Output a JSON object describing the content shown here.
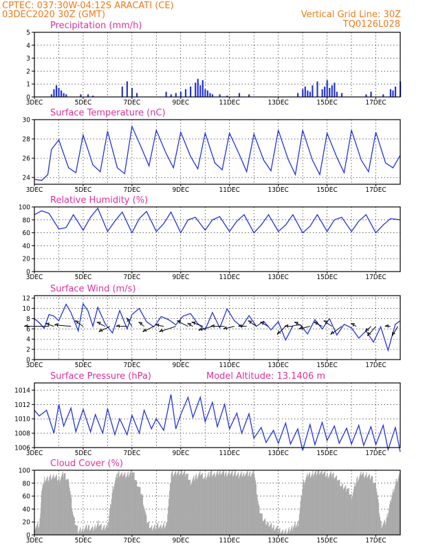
{
  "header": {
    "line1_left": "CPTEC:   037:30W-04:12S   ARACATI (CE)",
    "line2_left": "03DEC2020 30Z (GMT)",
    "line1_right": "Vertical Grid Line: 30Z",
    "line2_right": "TQ0126L028"
  },
  "colors": {
    "header": "#f07a1a",
    "title": "#e0309a",
    "series": "#2233dd",
    "cloud": "#a9a9a9"
  },
  "x_axis": {
    "start": "3DEC",
    "end": "18DEC",
    "tick_labels": [
      "3DEC",
      "5DEC",
      "7DEC",
      "9DEC",
      "11DEC",
      "13DEC",
      "15DEC",
      "17DEC"
    ]
  },
  "chart_data": [
    {
      "id": "precip",
      "type": "bar",
      "title": "Precipitation (mm/h)",
      "ylim": [
        0,
        5
      ],
      "yticks": [
        0,
        1,
        2,
        3,
        4,
        5
      ],
      "x": [
        3.7,
        3.8,
        3.9,
        4.0,
        4.1,
        4.2,
        4.3,
        4.9,
        5.2,
        5.4,
        6.6,
        6.8,
        7.0,
        7.2,
        8.4,
        8.6,
        8.8,
        9.0,
        9.2,
        9.4,
        9.6,
        9.7,
        9.8,
        9.9,
        10.0,
        10.1,
        10.2,
        10.3,
        10.6,
        10.9,
        11.4,
        11.8,
        13.8,
        14.0,
        14.1,
        14.2,
        14.3,
        14.4,
        14.6,
        14.8,
        14.9,
        15.0,
        15.1,
        15.2,
        15.3,
        15.4,
        15.6,
        16.6,
        16.8,
        17.3,
        17.6,
        17.7,
        17.8,
        18.0
      ],
      "values": [
        0.2,
        0.6,
        0.9,
        0.7,
        0.5,
        0.3,
        0.2,
        0.2,
        0.2,
        0.1,
        0.8,
        1.2,
        0.7,
        0.3,
        0.4,
        0.2,
        0.3,
        0.4,
        0.6,
        0.8,
        1.1,
        1.4,
        0.9,
        1.3,
        0.6,
        0.5,
        0.3,
        0.2,
        0.2,
        0.1,
        0.3,
        0.2,
        0.3,
        0.6,
        0.8,
        0.5,
        0.4,
        0.9,
        1.2,
        0.6,
        0.8,
        1.3,
        0.7,
        0.9,
        1.1,
        0.4,
        0.3,
        0.2,
        0.4,
        0.2,
        0.6,
        0.5,
        0.8,
        1.2
      ]
    },
    {
      "id": "temp",
      "type": "line",
      "title": "Surface Temperature (nC)",
      "ylim": [
        23.3,
        30
      ],
      "yticks": [
        24,
        26,
        28,
        30
      ],
      "days": [
        3.0,
        3.3,
        3.55,
        3.7,
        4.0,
        4.4,
        4.7,
        5.0,
        5.4,
        5.7,
        6.0,
        6.4,
        6.7,
        7.0,
        7.4,
        7.7,
        8.0,
        8.4,
        8.7,
        9.0,
        9.4,
        9.7,
        10.0,
        10.4,
        10.7,
        11.0,
        11.4,
        11.7,
        12.0,
        12.4,
        12.7,
        13.0,
        13.4,
        13.7,
        14.0,
        14.4,
        14.7,
        15.0,
        15.4,
        15.7,
        16.0,
        16.4,
        16.7,
        17.0,
        17.4,
        17.7,
        18.0
      ],
      "values": [
        23.8,
        23.7,
        24.3,
        26.9,
        27.9,
        25.0,
        24.5,
        28.4,
        25.3,
        24.6,
        28.8,
        25.0,
        24.4,
        29.3,
        27.0,
        25.2,
        28.9,
        26.5,
        25.0,
        28.7,
        26.2,
        24.9,
        28.6,
        25.5,
        24.8,
        28.6,
        26.4,
        24.6,
        28.5,
        25.8,
        24.7,
        28.9,
        25.9,
        24.3,
        28.9,
        25.8,
        24.3,
        28.6,
        26.1,
        24.5,
        28.9,
        25.8,
        24.6,
        28.7,
        25.5,
        25.0,
        26.3
      ]
    },
    {
      "id": "rh",
      "type": "line",
      "title": "Relative Humidity (%)",
      "ylim": [
        0,
        100
      ],
      "yticks": [
        0,
        20,
        40,
        60,
        80,
        100
      ],
      "days": [
        3.0,
        3.3,
        3.6,
        4.0,
        4.3,
        4.6,
        5.0,
        5.3,
        5.6,
        6.0,
        6.3,
        6.6,
        7.0,
        7.3,
        7.6,
        8.0,
        8.3,
        8.6,
        9.0,
        9.3,
        9.6,
        10.0,
        10.3,
        10.6,
        11.0,
        11.3,
        11.6,
        12.0,
        12.3,
        12.6,
        13.0,
        13.3,
        13.6,
        14.0,
        14.3,
        14.6,
        15.0,
        15.3,
        15.6,
        16.0,
        16.3,
        16.6,
        17.0,
        17.3,
        17.6,
        18.0
      ],
      "values": [
        88,
        94,
        90,
        66,
        68,
        88,
        64,
        84,
        98,
        62,
        78,
        92,
        60,
        82,
        93,
        62,
        74,
        92,
        60,
        80,
        84,
        64,
        80,
        85,
        62,
        78,
        88,
        60,
        72,
        88,
        62,
        72,
        88,
        60,
        70,
        88,
        62,
        80,
        84,
        62,
        78,
        88,
        60,
        72,
        82,
        80
      ]
    },
    {
      "id": "wind",
      "type": "line",
      "title": "Surface Wind (m/s)",
      "ylim": [
        0,
        12.5
      ],
      "yticks": [
        0,
        2,
        4,
        6,
        8,
        10,
        12
      ],
      "days": [
        3.0,
        3.2,
        3.4,
        3.6,
        3.8,
        4.0,
        4.3,
        4.5,
        4.8,
        5.0,
        5.2,
        5.4,
        5.6,
        5.9,
        6.2,
        6.5,
        6.8,
        7.0,
        7.3,
        7.6,
        7.9,
        8.2,
        8.5,
        8.8,
        9.1,
        9.4,
        9.7,
        10.0,
        10.3,
        10.6,
        10.9,
        11.2,
        11.5,
        11.8,
        12.1,
        12.4,
        12.7,
        13.0,
        13.3,
        13.6,
        13.9,
        14.2,
        14.5,
        14.8,
        15.1,
        15.4,
        15.7,
        16.0,
        16.3,
        16.6,
        16.9,
        17.2,
        17.5,
        17.8,
        18.0
      ],
      "values": [
        8.0,
        7.2,
        6.1,
        8.8,
        8.5,
        7.6,
        10.8,
        9.2,
        5.6,
        10.9,
        9.5,
        6.5,
        10.2,
        7.0,
        5.2,
        9.6,
        6.0,
        8.8,
        10.0,
        7.4,
        6.4,
        8.4,
        7.8,
        6.8,
        8.5,
        9.0,
        7.0,
        5.8,
        9.2,
        6.2,
        9.9,
        7.6,
        6.4,
        8.6,
        6.5,
        7.5,
        5.8,
        7.4,
        3.8,
        6.6,
        6.8,
        5.0,
        7.8,
        6.0,
        8.0,
        4.8,
        6.9,
        6.2,
        4.2,
        5.6,
        3.4,
        6.4,
        1.8,
        6.9,
        7.6
      ],
      "vectors": [
        {
          "day": 3.6,
          "u": -9,
          "v": 0
        },
        {
          "day": 3.8,
          "u": -3,
          "v": 1
        },
        {
          "day": 4.5,
          "u": -6,
          "v": 0.5
        },
        {
          "day": 5.0,
          "u": -3,
          "v": 2
        },
        {
          "day": 5.9,
          "u": -3,
          "v": 1.5
        },
        {
          "day": 6.1,
          "u": -4,
          "v": -2
        },
        {
          "day": 6.8,
          "u": -4,
          "v": 0
        },
        {
          "day": 7.0,
          "u": -2,
          "v": 3
        },
        {
          "day": 7.5,
          "u": -2,
          "v": 1.5
        },
        {
          "day": 7.9,
          "u": -4,
          "v": -2
        },
        {
          "day": 8.3,
          "u": -3,
          "v": 0.5
        },
        {
          "day": 8.8,
          "u": -6,
          "v": -2
        },
        {
          "day": 9.3,
          "u": -4,
          "v": 2
        },
        {
          "day": 9.5,
          "u": -2,
          "v": 1
        },
        {
          "day": 9.9,
          "u": -4,
          "v": 1.5
        },
        {
          "day": 10.3,
          "u": -5,
          "v": -1.5
        },
        {
          "day": 10.8,
          "u": -5,
          "v": 0
        },
        {
          "day": 11.2,
          "u": -4,
          "v": -1
        },
        {
          "day": 11.7,
          "u": -3,
          "v": 0
        },
        {
          "day": 12.1,
          "u": -3,
          "v": 2
        },
        {
          "day": 12.6,
          "u": -3,
          "v": 1.5
        },
        {
          "day": 13.3,
          "u": -3,
          "v": -3
        },
        {
          "day": 13.6,
          "u": -3,
          "v": 0
        },
        {
          "day": 14.0,
          "u": -3,
          "v": 1.5
        },
        {
          "day": 14.3,
          "u": -4,
          "v": -1
        },
        {
          "day": 14.8,
          "u": -3,
          "v": 1.5
        },
        {
          "day": 15.2,
          "u": -3,
          "v": 2
        },
        {
          "day": 15.6,
          "u": -4,
          "v": -3
        },
        {
          "day": 16.2,
          "u": -2,
          "v": 1
        },
        {
          "day": 16.8,
          "u": -2,
          "v": -2
        },
        {
          "day": 17.0,
          "u": -3,
          "v": -3.5
        },
        {
          "day": 17.6,
          "u": -2,
          "v": 0
        },
        {
          "day": 17.9,
          "u": -2,
          "v": -3.5
        }
      ]
    },
    {
      "id": "pressure",
      "type": "line",
      "title": "Surface Pressure (hPa)",
      "annotation": "Model Altitude: 13.1406 m",
      "ylim": [
        1006,
        1015
      ],
      "yticks": [
        1006,
        1008,
        1010,
        1012,
        1014
      ],
      "days": [
        3.0,
        3.2,
        3.5,
        3.8,
        4.0,
        4.2,
        4.5,
        4.7,
        5.0,
        5.3,
        5.5,
        5.8,
        6.0,
        6.3,
        6.5,
        6.8,
        7.0,
        7.3,
        7.5,
        7.8,
        8.0,
        8.3,
        8.6,
        8.8,
        9.0,
        9.3,
        9.5,
        9.8,
        10.0,
        10.3,
        10.5,
        10.8,
        11.0,
        11.3,
        11.5,
        11.8,
        12.0,
        12.3,
        12.5,
        12.8,
        13.0,
        13.3,
        13.5,
        13.8,
        14.0,
        14.3,
        14.5,
        14.8,
        15.0,
        15.3,
        15.5,
        15.8,
        16.0,
        16.3,
        16.5,
        16.8,
        17.0,
        17.3,
        17.5,
        17.8,
        18.0
      ],
      "values": [
        1011.2,
        1010.4,
        1011.2,
        1008.0,
        1012.0,
        1009.0,
        1011.5,
        1008.2,
        1011.3,
        1008.2,
        1010.6,
        1008.0,
        1011.4,
        1007.8,
        1010.0,
        1007.8,
        1010.5,
        1008.0,
        1011.2,
        1008.6,
        1010.0,
        1008.4,
        1013.4,
        1008.6,
        1010.6,
        1013.0,
        1010.2,
        1013.0,
        1009.6,
        1012.3,
        1008.9,
        1012.0,
        1008.6,
        1010.8,
        1008.0,
        1010.7,
        1007.3,
        1008.8,
        1006.7,
        1008.4,
        1006.6,
        1009.4,
        1006.5,
        1008.6,
        1005.6,
        1009.2,
        1006.4,
        1009.5,
        1007.0,
        1009.0,
        1006.6,
        1008.7,
        1006.5,
        1009.1,
        1006.3,
        1008.9,
        1006.4,
        1009.1,
        1005.7,
        1008.8,
        1005.4
      ]
    },
    {
      "id": "cloud",
      "type": "area",
      "title": "Cloud Cover (%)",
      "ylim": [
        0,
        100
      ],
      "yticks": [
        0,
        20,
        40,
        60,
        80,
        100
      ],
      "days": [
        3.0,
        3.2,
        3.3,
        3.4,
        3.6,
        3.8,
        4.0,
        4.2,
        4.4,
        4.6,
        4.8,
        5.0,
        5.2,
        5.4,
        5.6,
        5.8,
        6.0,
        6.2,
        6.4,
        6.6,
        6.8,
        7.0,
        7.2,
        7.4,
        7.6,
        7.8,
        8.0,
        8.2,
        8.4,
        8.6,
        8.8,
        9.0,
        9.2,
        9.4,
        9.6,
        9.8,
        10.0,
        10.2,
        10.4,
        10.6,
        10.8,
        11.0,
        11.2,
        11.4,
        11.6,
        11.8,
        12.0,
        12.2,
        12.4,
        12.6,
        12.8,
        13.0,
        13.2,
        13.4,
        13.6,
        13.8,
        14.0,
        14.2,
        14.4,
        14.6,
        14.8,
        15.0,
        15.2,
        15.4,
        15.6,
        15.8,
        16.0,
        16.2,
        16.4,
        16.6,
        16.8,
        17.0,
        17.2,
        17.4,
        17.6,
        17.8,
        18.0
      ],
      "values": [
        12,
        15,
        70,
        85,
        88,
        90,
        86,
        95,
        82,
        25,
        5,
        10,
        12,
        8,
        18,
        10,
        14,
        72,
        95,
        94,
        92,
        98,
        80,
        62,
        20,
        10,
        14,
        12,
        15,
        95,
        96,
        97,
        95,
        82,
        90,
        94,
        88,
        96,
        92,
        98,
        94,
        96,
        95,
        92,
        95,
        94,
        96,
        40,
        22,
        15,
        12,
        8,
        5,
        6,
        12,
        18,
        80,
        92,
        94,
        98,
        96,
        92,
        94,
        88,
        75,
        72,
        60,
        85,
        94,
        92,
        90,
        75,
        15,
        20,
        55,
        80,
        95
      ]
    }
  ]
}
